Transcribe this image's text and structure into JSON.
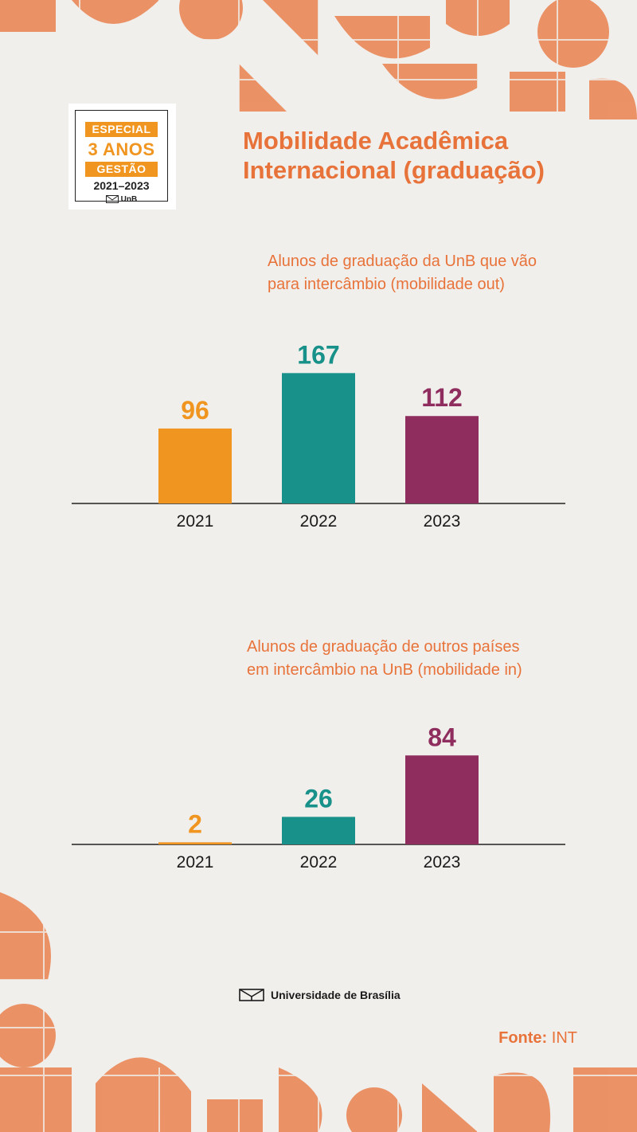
{
  "title": "Mobilidade Acadêmica\nInternacional (graduação)",
  "badge": {
    "line1": "ESPECIAL",
    "line2": "3 ANOS",
    "line3": "GESTÃO",
    "years": "2021–2023",
    "logo_text": "UnB"
  },
  "colors": {
    "accent": "#e8733a",
    "orange": "#f0951f",
    "teal": "#179189",
    "purple": "#8f2e5e"
  },
  "chart_data": [
    {
      "type": "bar",
      "title": "Alunos de graduação da UnB que vão\npara intercâmbio (mobilidade out)",
      "categories": [
        "2021",
        "2022",
        "2023"
      ],
      "values": [
        96,
        167,
        112
      ],
      "value_labels": [
        "96",
        "167",
        "112"
      ],
      "bar_colors": [
        "#f0951f",
        "#179189",
        "#8f2e5e"
      ],
      "xlabel": "",
      "ylabel": ""
    },
    {
      "type": "bar",
      "title": "Alunos de graduação de outros países\nem intercâmbio na UnB (mobilidade in)",
      "categories": [
        "2021",
        "2022",
        "2023"
      ],
      "values": [
        2,
        26,
        84
      ],
      "value_labels": [
        "2",
        "26",
        "84"
      ],
      "bar_colors": [
        "#f0951f",
        "#179189",
        "#8f2e5e"
      ],
      "xlabel": "",
      "ylabel": ""
    }
  ],
  "footer": {
    "institution": "Universidade de Brasília",
    "source_label": "Fonte:",
    "source_value": "INT"
  }
}
